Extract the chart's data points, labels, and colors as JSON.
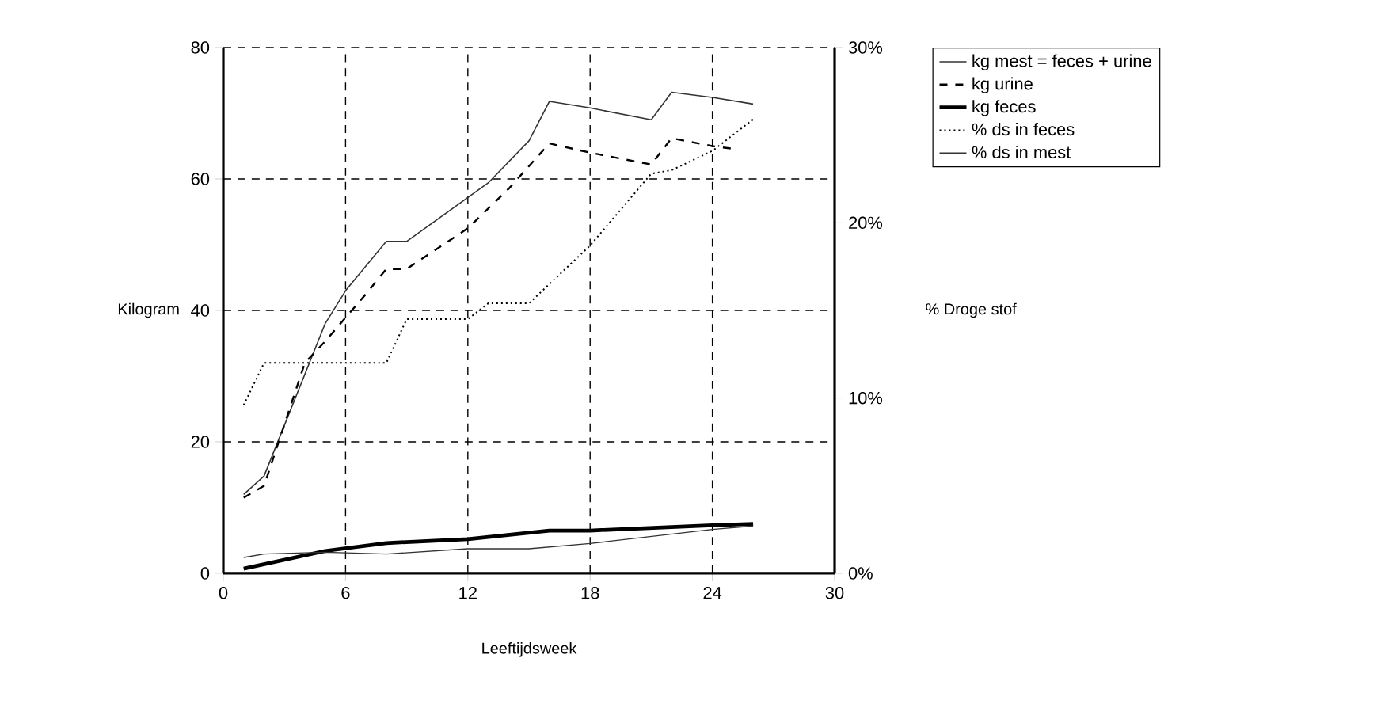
{
  "chart_data": {
    "type": "line",
    "xlabel": "Leeftijdsweek",
    "ylabel": "Kilogram",
    "y2label": "% Droge stof",
    "xlim": [
      0,
      30
    ],
    "xticks": [
      0,
      6,
      12,
      18,
      24,
      30
    ],
    "ylim": [
      0,
      80
    ],
    "yticks": [
      0,
      20,
      40,
      60,
      80
    ],
    "y2lim": [
      0,
      30
    ],
    "y2ticks": [
      {
        "value": 0,
        "label": "0%"
      },
      {
        "value": 10,
        "label": "10%"
      },
      {
        "value": 20,
        "label": "20%"
      },
      {
        "value": 30,
        "label": "30%"
      }
    ],
    "grid": true,
    "legend": "top right",
    "marker": "none",
    "series": [
      {
        "name": "kg mest = feces + urine",
        "color": "#333333",
        "line_style": "solid",
        "x": [
          1,
          2,
          5,
          6,
          8,
          9,
          13,
          15,
          16,
          18,
          21,
          22,
          24,
          26
        ],
        "values": [
          12.0,
          14.8,
          38,
          43,
          50.5,
          50.5,
          59.4,
          65.8,
          71.8,
          70.8,
          69,
          73.2,
          72.4,
          71.4
        ]
      },
      {
        "name": "kg urine",
        "color": "#000000",
        "line_style": "dashed",
        "x": [
          1,
          2,
          4,
          5,
          6,
          7,
          8,
          9,
          12,
          14,
          16,
          18,
          21,
          22,
          24,
          25
        ],
        "values": [
          11.5,
          13.3,
          32,
          35.3,
          38.9,
          42.5,
          46.3,
          46.3,
          52.5,
          58.5,
          65.4,
          64,
          62.2,
          66.2,
          65,
          64.6
        ]
      },
      {
        "name": "kg feces",
        "color": "#000000",
        "line_style": "solid",
        "x": [
          1,
          5,
          8,
          12,
          16,
          18,
          24,
          26
        ],
        "values": [
          0.7,
          3.4,
          4.6,
          5.2,
          6.5,
          6.5,
          7.3,
          7.5
        ]
      },
      {
        "name": "% ds in feces",
        "color": "#000000",
        "line_style": "dotted",
        "axis": "y2",
        "x": [
          1,
          2,
          8,
          9,
          12,
          13,
          15,
          18,
          21,
          22,
          24,
          26
        ],
        "values": [
          9.6,
          12.0,
          12.0,
          14.5,
          14.5,
          15.4,
          15.4,
          18.7,
          22.8,
          23.0,
          24.1,
          25.9
        ]
      },
      {
        "name": "% ds in mest",
        "color": "#333333",
        "line_style": "solid",
        "axis": "y2",
        "x": [
          1,
          2,
          5,
          8,
          12,
          15,
          18,
          24,
          26
        ],
        "values": [
          0.9,
          1.1,
          1.2,
          1.1,
          1.4,
          1.4,
          1.7,
          2.5,
          2.7
        ]
      }
    ]
  }
}
